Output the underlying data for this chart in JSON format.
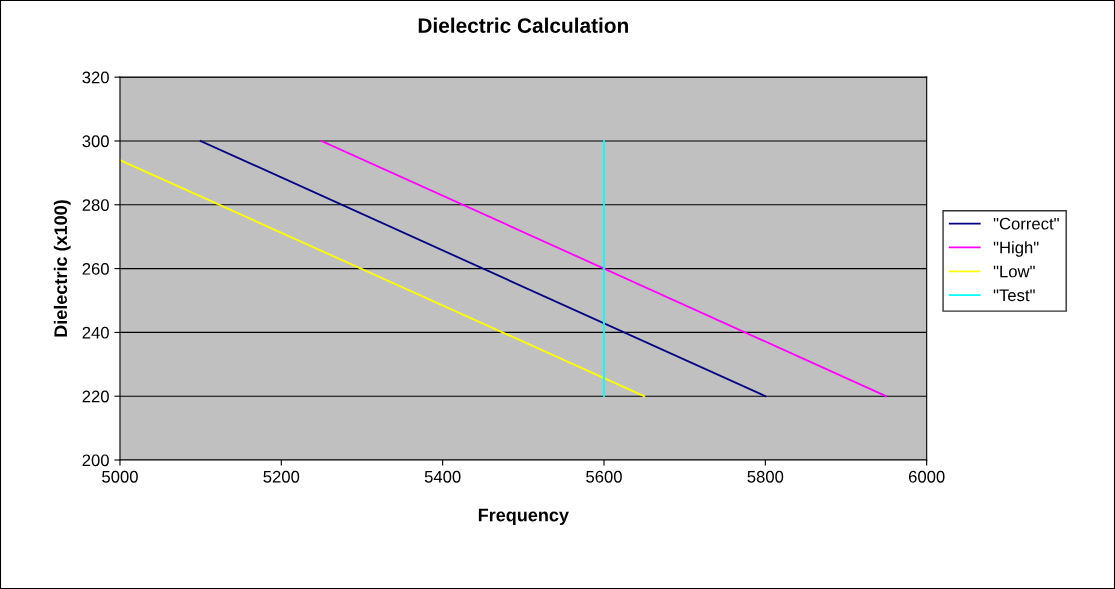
{
  "chart_data": {
    "type": "line",
    "title": "Dielectric Calculation",
    "xlabel": "Frequency",
    "ylabel": "Dielectric (x100)",
    "series": [
      {
        "name": "\"Correct\"",
        "color": "#000080",
        "x": [
          5100,
          5800
        ],
        "values": [
          300,
          220
        ]
      },
      {
        "name": "\"High\"",
        "color": "#ff00ff",
        "x": [
          5250,
          5950
        ],
        "values": [
          300,
          220
        ]
      },
      {
        "name": "\"Low\"",
        "color": "#ffff00",
        "x": [
          5000,
          5650
        ],
        "values": [
          294,
          220
        ]
      },
      {
        "name": "\"Test\"",
        "color": "#00ffff",
        "x": [
          5600,
          5600
        ],
        "values": [
          300,
          220
        ]
      }
    ],
    "xlim": [
      5000,
      6000
    ],
    "xticks": [
      5000,
      5200,
      5400,
      5600,
      5800,
      6000
    ],
    "ylim": [
      200,
      320
    ],
    "yticks": [
      200,
      220,
      240,
      260,
      280,
      300,
      320
    ],
    "grid": "y",
    "legend": "right",
    "marker": "none",
    "line_style": "solid"
  }
}
